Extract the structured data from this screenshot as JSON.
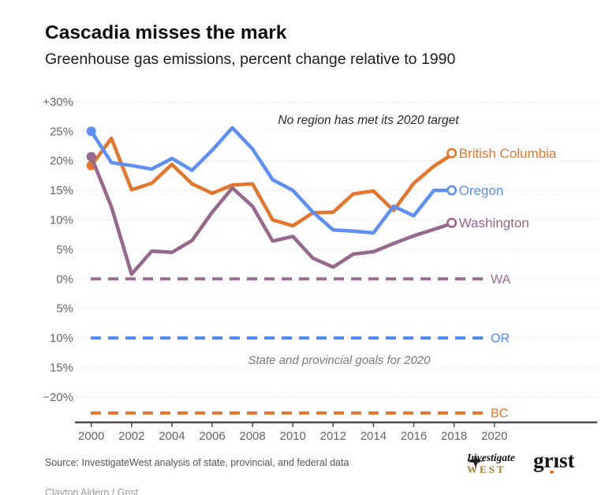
{
  "header": {
    "title": "Cascadia misses the mark",
    "subtitle": "Greenhouse gas emissions, percent change relative to 1990"
  },
  "chart_data": {
    "type": "line",
    "title": "Cascadia misses the mark",
    "subtitle": "Greenhouse gas emissions, percent change relative to 1990",
    "x": [
      2000,
      2001,
      2002,
      2003,
      2004,
      2005,
      2006,
      2007,
      2008,
      2009,
      2010,
      2011,
      2012,
      2013,
      2014,
      2015,
      2016,
      2017,
      2018
    ],
    "x_axis": {
      "ticks": [
        2000,
        2002,
        2004,
        2006,
        2008,
        2010,
        2012,
        2014,
        2016,
        2018,
        2020
      ],
      "range": [
        1999.2,
        2025
      ]
    },
    "y_axis": {
      "range": [
        -24.3,
        30
      ],
      "unit": "percent",
      "ticks": [
        {
          "value": 30,
          "label": "+30%"
        },
        {
          "value": 25,
          "label": "25%"
        },
        {
          "value": 20,
          "label": "20%"
        },
        {
          "value": 15,
          "label": "15%"
        },
        {
          "value": 10,
          "label": "10%"
        },
        {
          "value": 5,
          "label": "5%"
        },
        {
          "value": 0,
          "label": "0%"
        },
        {
          "value": -5,
          "label": "5%"
        },
        {
          "value": -10,
          "label": "10%"
        },
        {
          "value": -15,
          "label": "15%"
        },
        {
          "value": -20,
          "label": "−20%"
        }
      ]
    },
    "grid": true,
    "legend_position": "end-of-line-labels",
    "series": [
      {
        "name": "British Columbia",
        "color": "#e4752c",
        "values": [
          19.2,
          23.8,
          15.1,
          16.2,
          19.4,
          16.1,
          14.5,
          15.9,
          16.1,
          10.0,
          9.0,
          11.2,
          11.3,
          14.4,
          14.9,
          11.6,
          16.2,
          19.1,
          21.3
        ]
      },
      {
        "name": "Washington",
        "color": "#96688c",
        "values": [
          20.7,
          12.2,
          0.8,
          4.7,
          4.5,
          6.5,
          11.3,
          15.4,
          12.3,
          6.4,
          7.2,
          3.5,
          2.0,
          4.2,
          4.6,
          6.0,
          7.3,
          8.4,
          9.5
        ]
      },
      {
        "name": "Oregon",
        "color": "#5e8ff2",
        "values": [
          25.0,
          19.7,
          19.2,
          18.6,
          20.4,
          18.4,
          21.8,
          25.6,
          22.0,
          16.8,
          15.0,
          11.3,
          8.3,
          8.1,
          7.8,
          12.3,
          10.7,
          15.0,
          15.0
        ]
      }
    ],
    "goal_lines": [
      {
        "label": "WA",
        "color": "#9a6c92",
        "value": 0
      },
      {
        "label": "OR",
        "color": "#4f86f7",
        "value": -10
      },
      {
        "label": "BC",
        "color": "#e4752c",
        "value": -22.7
      }
    ],
    "annotations": [
      {
        "text": "No region has met its 2020 target"
      },
      {
        "text": "State and provincial goals for 2020"
      }
    ]
  },
  "footer": {
    "source": "Source: InvestigateWest analysis of state, provincial, and federal data",
    "logo_investigatewest": {
      "line1": "Investigate",
      "line2": "WEST"
    },
    "logo_grist": {
      "part1": "gr",
      "dotless_i": "ı",
      "part2": "st"
    },
    "credit": "Clayton Aldern / Grist"
  }
}
